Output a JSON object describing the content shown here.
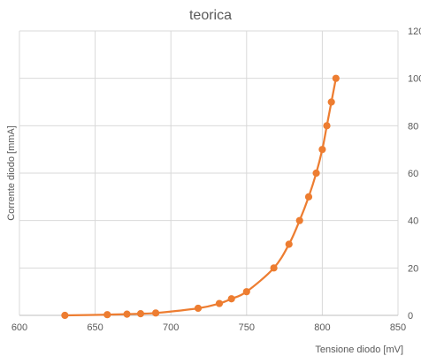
{
  "chart_data": {
    "type": "scatter",
    "title": "teorica",
    "xlabel": "Tensione diodo [mV]",
    "ylabel": "Corrente diodo [mmA]",
    "xlim": [
      600,
      850
    ],
    "ylim": [
      0,
      120
    ],
    "x_ticks": [
      "600",
      "650",
      "700",
      "750",
      "800",
      "850"
    ],
    "y_ticks": [
      "0",
      "20",
      "40",
      "60",
      "80",
      "100",
      "120"
    ],
    "grid": true,
    "line": "smooth",
    "colors": {
      "series": "#ED7D31",
      "grid": "#D9D9D9",
      "text": "#595959"
    },
    "series": [
      {
        "x": [
          630,
          658,
          671,
          680,
          690,
          718,
          732,
          740,
          750,
          768,
          778,
          785,
          791,
          796,
          800,
          803,
          806,
          809
        ],
        "y": [
          0,
          0.3,
          0.5,
          0.7,
          1,
          3,
          5,
          7,
          10,
          20,
          30,
          40,
          50,
          60,
          70,
          80,
          90,
          100
        ]
      }
    ]
  }
}
